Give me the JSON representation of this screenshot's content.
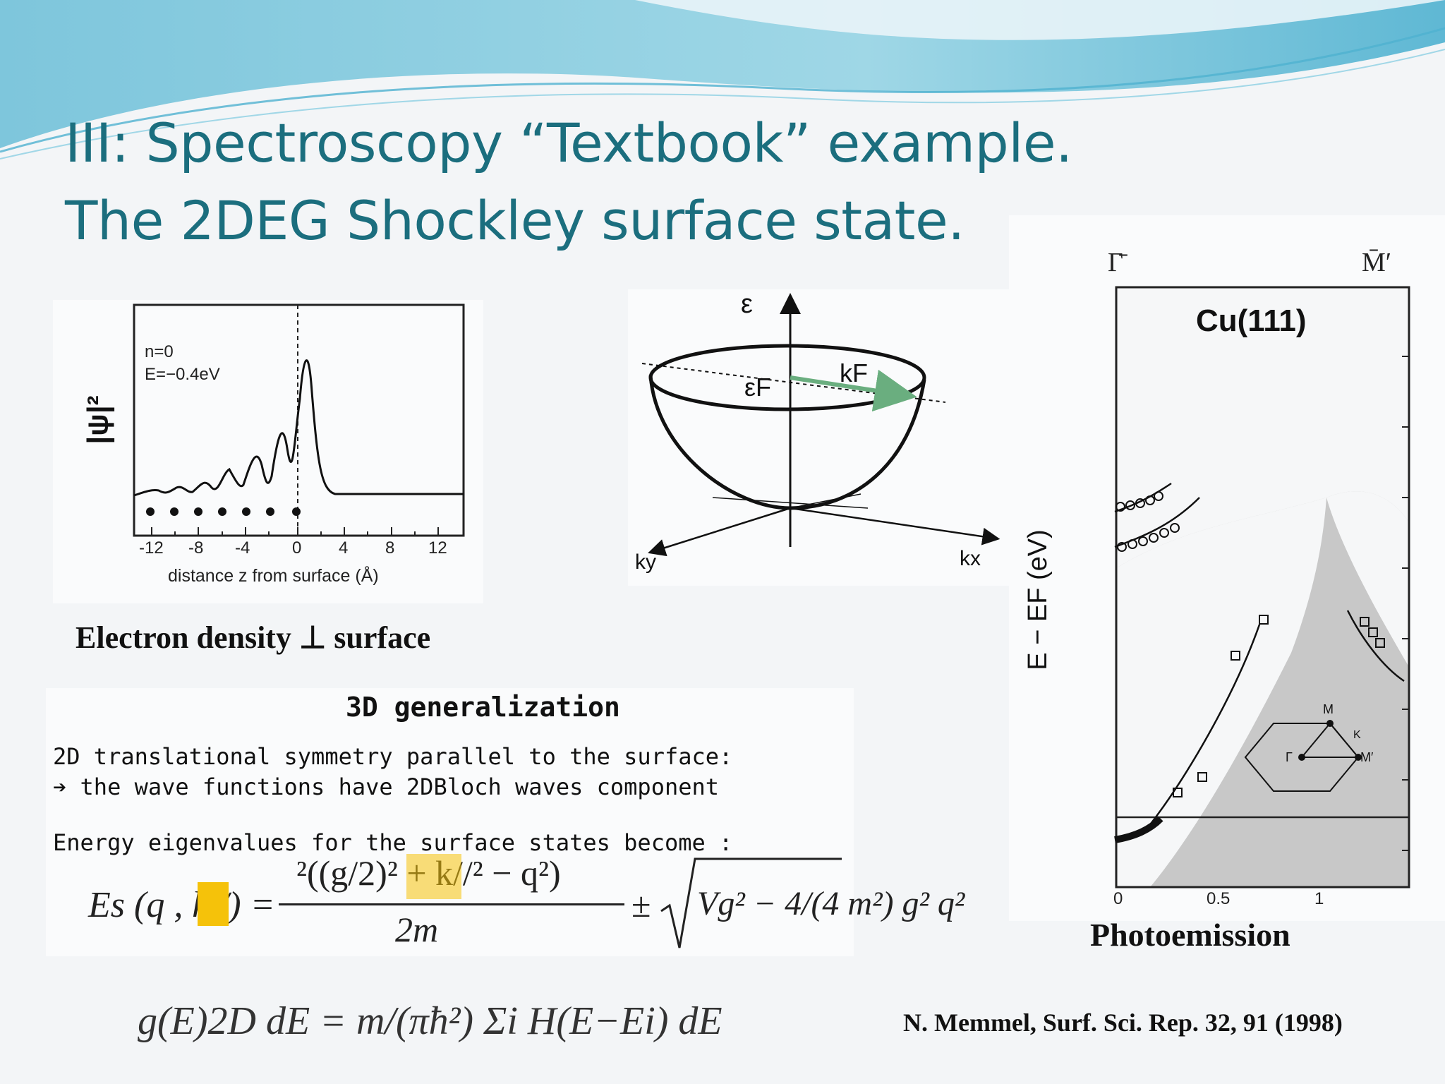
{
  "slide": {
    "title_line1": "III: Spectroscopy “Textbook” example.",
    "title_line2": "The 2DEG Shockley surface state."
  },
  "density_plot": {
    "ylabel": "|ψ|²",
    "xlabel": "distance z from surface  (Å)",
    "annot_n": "n=0",
    "annot_e": "E=−0.4eV",
    "x_ticks": [
      "-12",
      "-8",
      "-4",
      "0",
      "4",
      "8",
      "12"
    ],
    "caption": "Electron density ⊥ surface"
  },
  "dispersion": {
    "label_eps": "ε",
    "label_epsF": "εF",
    "label_kF": "kF",
    "label_ky": "ky",
    "label_kx": "kx"
  },
  "generalization": {
    "heading": "3D generalization",
    "line1": "2D translational symmetry parallel to the surface:",
    "line2": "➔ the wave functions have 2DBloch waves component",
    "line3": "Energy eigenvalues for the surface states become :"
  },
  "equation": {
    "lhs": "Es (q , k//) =",
    "numerator": "²((g/2)² + k//² − q²)",
    "denominator": "2m",
    "pm": "±",
    "root": "Vg² − 4/(4 m²) g² q²"
  },
  "dos_equation": {
    "text": "g(E)2D dE = m/(πħ²) Σi H(E−Ei) dE"
  },
  "photoemission": {
    "label_gamma": "Γ̄",
    "label_m": "M̄′",
    "sample": "Cu(111)",
    "ylabel": "E − EF (eV)",
    "x_ticks": [
      "0",
      "0.5",
      "1"
    ],
    "bz_M": "M",
    "bz_K": "K",
    "bz_G": "Γ",
    "bz_Mp": "M′",
    "caption": "Photoemission"
  },
  "reference": "N. Memmel, Surf. Sci. Rep. 32, 91 (1998)"
}
